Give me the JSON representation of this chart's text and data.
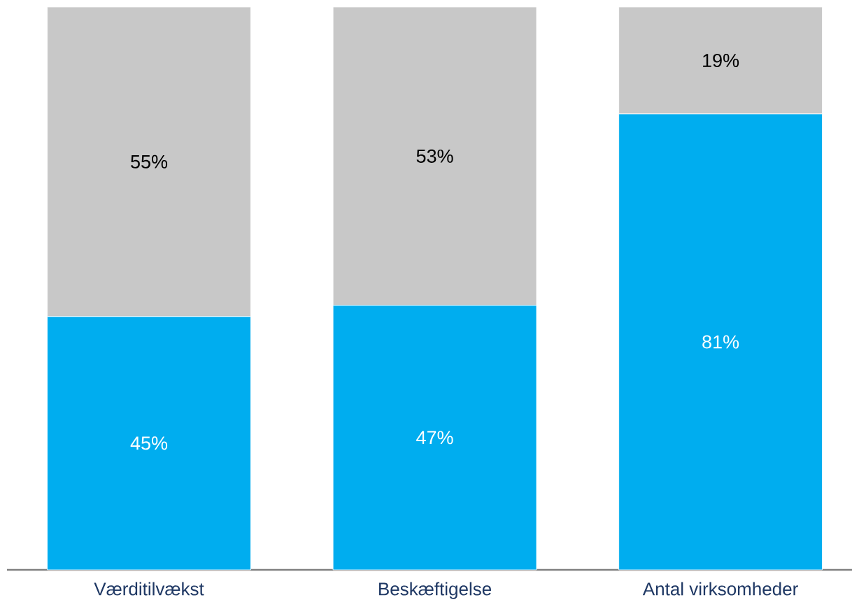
{
  "chart_data": {
    "type": "bar",
    "stacked": true,
    "categories": [
      "Værditilvækst",
      "Beskæftigelse",
      "Antal virksomheder"
    ],
    "series": [
      {
        "color": "#00adef",
        "values": [
          45,
          47,
          81
        ],
        "value_labels": [
          "45%",
          "47%",
          "81%"
        ]
      },
      {
        "color": "#c8c8c8",
        "values": [
          55,
          53,
          19
        ],
        "value_labels": [
          "55%",
          "53%",
          "19%"
        ]
      }
    ]
  }
}
